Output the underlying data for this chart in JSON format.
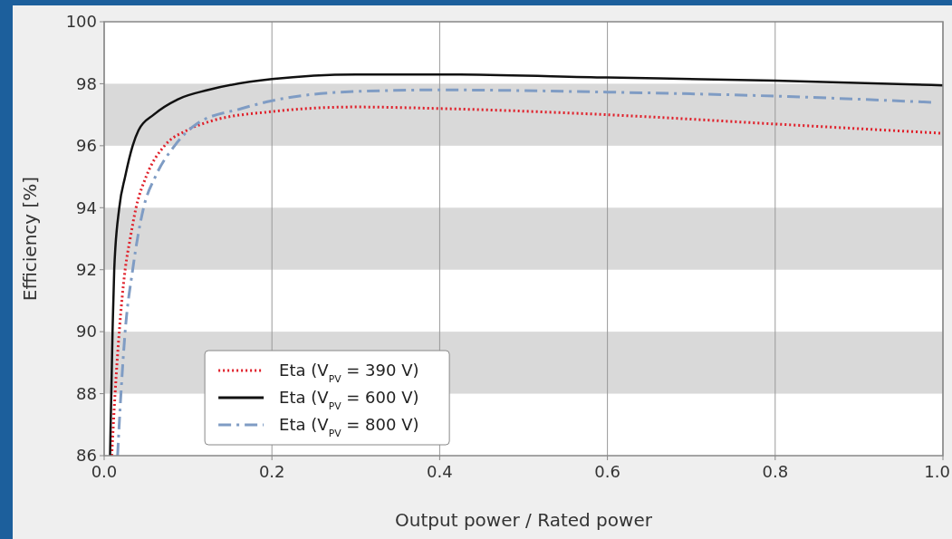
{
  "chart_data": {
    "type": "line",
    "xlabel": "Output power / Rated power",
    "ylabel": "Efficiency [%]",
    "xlim": [
      0,
      1
    ],
    "ylim": [
      86,
      100
    ],
    "xticks": [
      {
        "value": 0,
        "label": "0.0"
      },
      0.2,
      0.4,
      0.6,
      0.8,
      {
        "value": 1,
        "label": "1.0"
      }
    ],
    "yticks": [
      86,
      88,
      90,
      92,
      94,
      96,
      98,
      100
    ],
    "grid": "x",
    "legend": "bottom left",
    "bands": [
      {
        "axis": "y",
        "from": 88,
        "to": 90,
        "color": "#d9d9d9"
      },
      {
        "axis": "y",
        "from": 92,
        "to": 94,
        "color": "#d9d9d9"
      },
      {
        "axis": "y",
        "from": 96,
        "to": 98,
        "color": "#d9d9d9"
      }
    ],
    "series": [
      {
        "name": "Eta (V$_{PV}$ = 390 V)",
        "color": "#e0202a",
        "line_style": "dotted",
        "x": [
          0.009,
          0.013,
          0.018,
          0.025,
          0.031,
          0.038,
          0.05,
          0.072,
          0.099,
          0.128,
          0.2,
          0.3,
          0.4,
          0.6,
          0.8,
          1.0
        ],
        "values": [
          86,
          88,
          90,
          92,
          93,
          94,
          95,
          96,
          96.5,
          96.8,
          97.1,
          97.25,
          97.2,
          97.0,
          96.7,
          96.4
        ]
      },
      {
        "name": "Eta (V$_{PV}$ = 600 V)",
        "color": "#111111",
        "line_style": "solid",
        "x": [
          0.007,
          0.01,
          0.012,
          0.018,
          0.025,
          0.034,
          0.041,
          0.059,
          0.088,
          0.124,
          0.2,
          0.3,
          0.4,
          0.6,
          0.8,
          1.0
        ],
        "values": [
          86,
          90,
          92,
          94,
          95,
          96,
          96.5,
          97,
          97.5,
          97.8,
          98.15,
          98.3,
          98.3,
          98.2,
          98.1,
          97.95
        ]
      },
      {
        "name": "Eta (V$_{PV}$ = 800 V)",
        "color": "#7f9cc4",
        "line_style": "dashed",
        "x": [
          0.016,
          0.02,
          0.025,
          0.034,
          0.047,
          0.061,
          0.084,
          0.11,
          0.164,
          0.2,
          0.3,
          0.4,
          0.6,
          0.8,
          0.987
        ],
        "values": [
          86,
          88,
          90,
          92,
          94,
          95,
          96,
          96.7,
          97.2,
          97.45,
          97.75,
          97.8,
          97.73,
          97.6,
          97.4
        ]
      }
    ]
  }
}
